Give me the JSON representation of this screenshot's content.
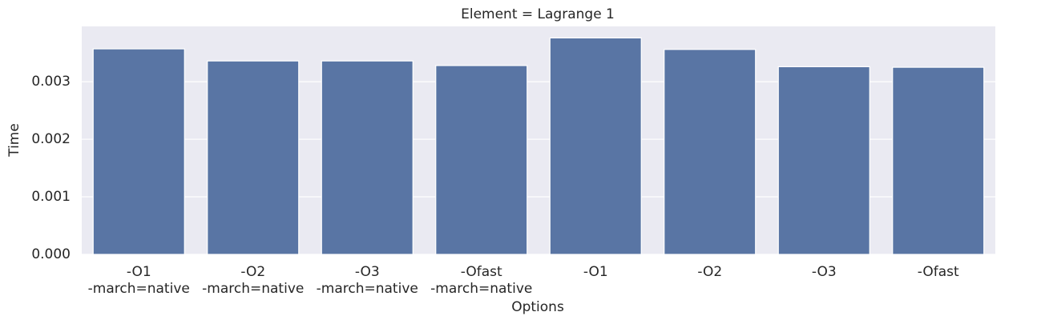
{
  "chart_data": {
    "type": "bar",
    "title": "Element = Lagrange 1",
    "x_label": "Options",
    "y_label": "Time",
    "categories": [
      "-O1\n-march=native",
      "-O2\n-march=native",
      "-O3\n-march=native",
      "-Ofast\n-march=native",
      "-O1",
      "-O2",
      "-O3",
      "-Ofast"
    ],
    "values": [
      0.00357,
      0.00336,
      0.00336,
      0.00328,
      0.00376,
      0.00356,
      0.00326,
      0.00325
    ],
    "color": "#5975a4",
    "ylim": [
      0,
      0.00396
    ],
    "yticks": [
      {
        "value": 0,
        "label": "0.000"
      },
      {
        "value": 0.001,
        "label": "0.001"
      },
      {
        "value": 0.002,
        "label": "0.002"
      },
      {
        "value": 0.003,
        "label": "0.003"
      }
    ],
    "grid": true
  }
}
